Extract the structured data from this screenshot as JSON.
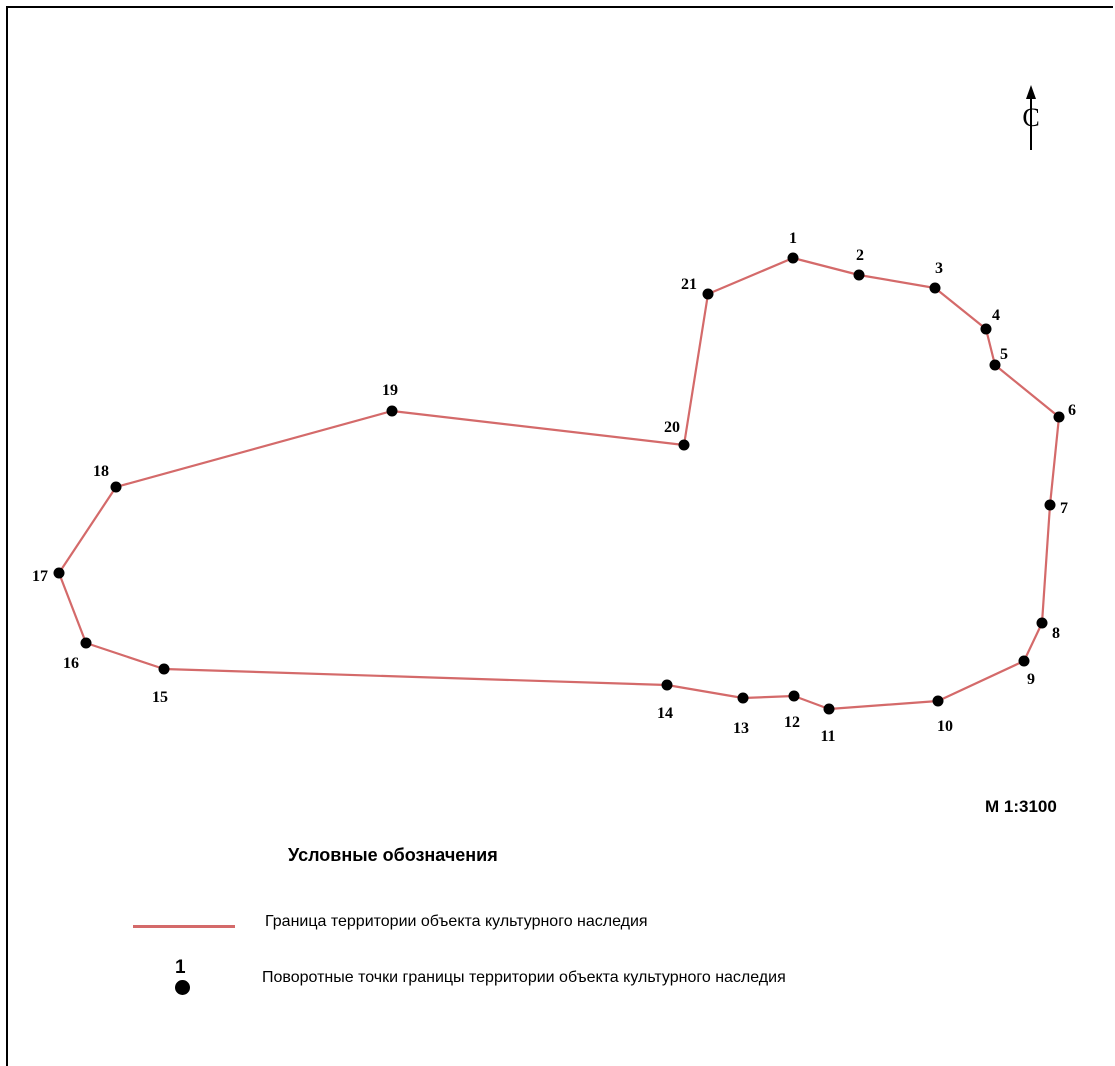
{
  "north_arrow": {
    "letter": "С"
  },
  "scale": {
    "text": "М 1:3100"
  },
  "boundary": {
    "color": "#d46a6a",
    "points": [
      {
        "label": "1"
      },
      {
        "label": "2"
      },
      {
        "label": "3"
      },
      {
        "label": "4"
      },
      {
        "label": "5"
      },
      {
        "label": "6"
      },
      {
        "label": "7"
      },
      {
        "label": "8"
      },
      {
        "label": "9"
      },
      {
        "label": "10"
      },
      {
        "label": "11"
      },
      {
        "label": "12"
      },
      {
        "label": "13"
      },
      {
        "label": "14"
      },
      {
        "label": "15"
      },
      {
        "label": "16"
      },
      {
        "label": "17"
      },
      {
        "label": "18"
      },
      {
        "label": "19"
      },
      {
        "label": "20"
      },
      {
        "label": "21"
      }
    ]
  },
  "legend": {
    "title": "Условные обозначения",
    "items": [
      {
        "symbol": "boundary-line",
        "label": "Граница территории объекта культурного наследия"
      },
      {
        "symbol": "turning-point",
        "number": "1",
        "label": "Поворотные точки границы территории объекта культурного наследия"
      }
    ]
  }
}
